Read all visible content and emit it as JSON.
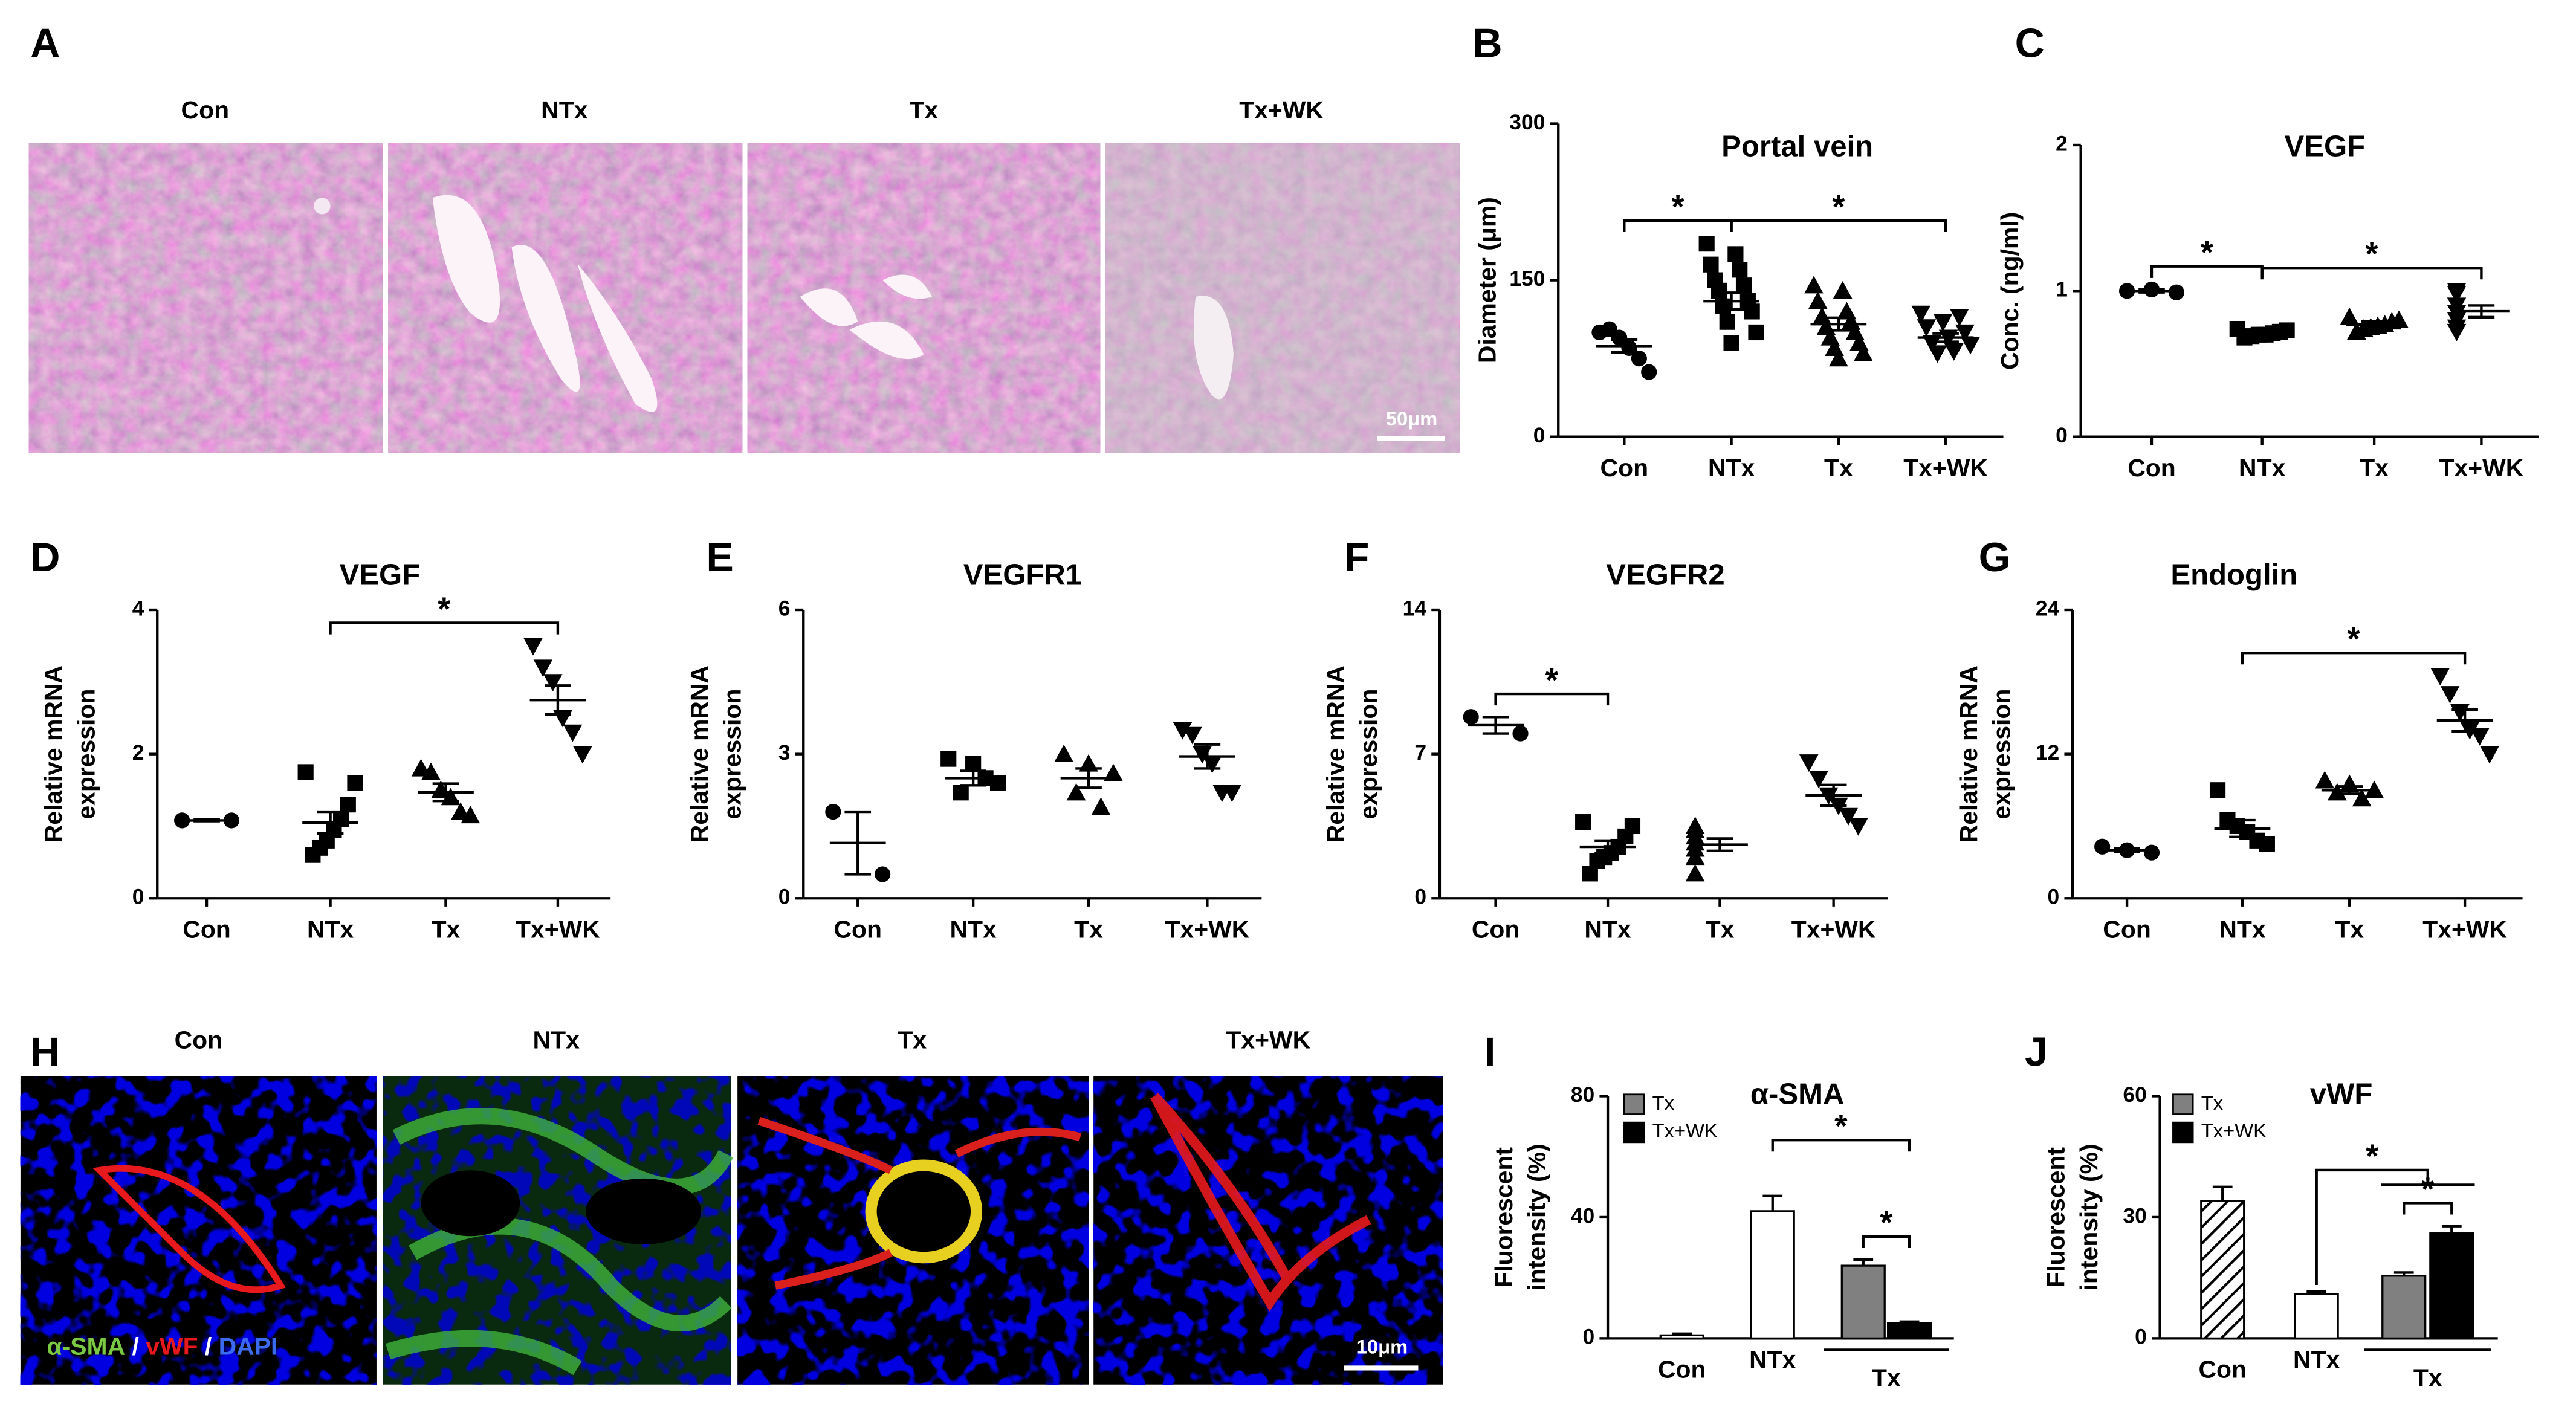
{
  "figure": {
    "A": {
      "panel": "A",
      "labels": [
        "Con",
        "NTx",
        "Tx",
        "Tx+WK"
      ],
      "scale_bar": "50μm"
    },
    "H": {
      "panel": "H",
      "labels": [
        "Con",
        "NTx",
        "Tx",
        "Tx+WK"
      ],
      "scale_bar": "10μm",
      "stain_label": [
        "α-SMA",
        " / ",
        "vWF",
        " / ",
        "DAPI"
      ],
      "stain_colors": [
        "#7ac943",
        "#ffffff",
        "#e8191d",
        "#ffffff",
        "#3b6cf0"
      ]
    }
  },
  "chart_data": [
    {
      "panel": "B",
      "type": "dotplot",
      "title": "Portal vein",
      "ylabel": "Diameter (μm)",
      "categories": [
        "Con",
        "NTx",
        "Tx",
        "Tx+WK"
      ],
      "markers": [
        "circle",
        "square",
        "triangle",
        "triangle-down"
      ],
      "points": [
        [
          100,
          103,
          95,
          85,
          75,
          62
        ],
        [
          185,
          175,
          165,
          160,
          150,
          145,
          140,
          130,
          125,
          120,
          110,
          100,
          90
        ],
        [
          145,
          140,
          130,
          120,
          115,
          110,
          105,
          100,
          95,
          90,
          85,
          80,
          75
        ],
        [
          118,
          115,
          110,
          105,
          100,
          95,
          90,
          88,
          82,
          80
        ]
      ],
      "means": [
        87,
        130,
        108,
        95
      ],
      "sems": [
        6,
        8,
        6,
        4
      ],
      "ylim": [
        0,
        300
      ],
      "yticks": [
        0,
        150,
        300
      ],
      "significance": [
        {
          "from": 0,
          "to": 1,
          "label": "*"
        },
        {
          "from": 1,
          "to": 3,
          "label": "*"
        }
      ]
    },
    {
      "panel": "C",
      "type": "dotplot",
      "title": "VEGF",
      "ylabel": "Conc. (ng/ml)",
      "categories": [
        "Con",
        "NTx",
        "Tx",
        "Tx+WK"
      ],
      "markers": [
        "circle",
        "square",
        "triangle",
        "triangle-down"
      ],
      "points": [
        [
          1.0,
          1.01,
          0.99
        ],
        [
          0.74,
          0.73,
          0.72,
          0.71,
          0.7,
          0.7,
          0.69,
          0.68
        ],
        [
          0.82,
          0.8,
          0.79,
          0.77,
          0.76,
          0.75,
          0.74,
          0.72
        ],
        [
          1.0,
          0.98,
          0.9,
          0.85,
          0.8,
          0.75,
          0.72
        ]
      ],
      "means": [
        1.0,
        0.71,
        0.77,
        0.86
      ],
      "sems": [
        0.01,
        0.01,
        0.02,
        0.04
      ],
      "ylim": [
        0,
        2
      ],
      "yticks": [
        0,
        1,
        2
      ],
      "significance": [
        {
          "from": 0,
          "to": 1,
          "label": "*"
        },
        {
          "from": 1,
          "to": 3,
          "label": "*"
        }
      ]
    },
    {
      "panel": "D",
      "type": "dotplot",
      "title": "VEGF",
      "ylabel": [
        "Relative mRNA",
        "expression"
      ],
      "categories": [
        "Con",
        "NTx",
        "Tx",
        "Tx+WK"
      ],
      "markers": [
        "circle",
        "square",
        "triangle",
        "triangle-down"
      ],
      "points": [
        [
          1.08,
          1.08
        ],
        [
          1.75,
          1.6,
          1.3,
          1.1,
          0.95,
          0.8,
          0.7,
          0.6
        ],
        [
          1.8,
          1.75,
          1.5,
          1.4,
          1.2,
          1.15
        ],
        [
          3.5,
          3.2,
          3.0,
          2.5,
          2.3,
          2.0
        ]
      ],
      "means": [
        1.08,
        1.05,
        1.47,
        2.75
      ],
      "sems": [
        0.01,
        0.15,
        0.12,
        0.2
      ],
      "ylim": [
        0,
        4
      ],
      "yticks": [
        0,
        2,
        4
      ],
      "significance": [
        {
          "from": 1,
          "to": 3,
          "label": "*"
        }
      ]
    },
    {
      "panel": "E",
      "type": "dotplot",
      "title": "VEGFR1",
      "ylabel": [
        "Relative mRNA",
        "expression"
      ],
      "categories": [
        "Con",
        "NTx",
        "Tx",
        "Tx+WK"
      ],
      "markers": [
        "circle",
        "square",
        "triangle",
        "triangle-down"
      ],
      "points": [
        [
          1.8,
          0.5
        ],
        [
          2.9,
          2.8,
          2.4,
          2.2,
          2.5
        ],
        [
          3.0,
          2.8,
          2.6,
          2.2,
          1.9
        ],
        [
          3.5,
          3.4,
          3.0,
          2.8,
          2.2,
          2.2
        ]
      ],
      "means": [
        1.15,
        2.5,
        2.5,
        2.95
      ],
      "sems": [
        0.65,
        0.15,
        0.2,
        0.25
      ],
      "ylim": [
        0,
        6
      ],
      "yticks": [
        0,
        3,
        6
      ],
      "significance": []
    },
    {
      "panel": "F",
      "type": "dotplot",
      "title": "VEGFR2",
      "ylabel": [
        "Relative mRNA",
        "expression"
      ],
      "categories": [
        "Con",
        "NTx",
        "Tx",
        "Tx+WK"
      ],
      "markers": [
        "circle",
        "square",
        "triangle",
        "triangle-down"
      ],
      "points": [
        [
          8.8,
          8.0
        ],
        [
          3.7,
          3.5,
          3.0,
          2.5,
          2.2,
          2.0,
          1.8,
          1.2
        ],
        [
          3.5,
          3.3,
          3.0,
          2.7,
          2.4,
          2.0,
          1.2
        ],
        [
          6.6,
          5.8,
          5.0,
          4.5,
          4.0,
          3.5
        ]
      ],
      "means": [
        8.4,
        2.5,
        2.6,
        5.0
      ],
      "sems": [
        0.4,
        0.3,
        0.3,
        0.5
      ],
      "ylim": [
        0,
        14
      ],
      "yticks": [
        0,
        7,
        14
      ],
      "significance": [
        {
          "from": 0,
          "to": 1,
          "label": "*"
        }
      ]
    },
    {
      "panel": "G",
      "type": "dotplot",
      "title": "Endoglin",
      "ylabel": [
        "Relative mRNA",
        "expression"
      ],
      "categories": [
        "Con",
        "NTx",
        "Tx",
        "Tx+WK"
      ],
      "markers": [
        "circle",
        "square",
        "triangle",
        "triangle-down"
      ],
      "points": [
        [
          4.3,
          4.0,
          3.8
        ],
        [
          9.0,
          6.5,
          6.0,
          5.5,
          4.8,
          4.5
        ],
        [
          9.8,
          9.5,
          9.0,
          8.8,
          8.3
        ],
        [
          18.5,
          17,
          15.5,
          14,
          13.5,
          12
        ]
      ],
      "means": [
        4.0,
        5.8,
        9.0,
        14.8
      ],
      "sems": [
        0.15,
        0.7,
        0.3,
        0.9
      ],
      "ylim": [
        0,
        24
      ],
      "yticks": [
        0,
        12,
        24
      ],
      "significance": [
        {
          "from": 1,
          "to": 3,
          "label": "*"
        }
      ]
    },
    {
      "panel": "I",
      "type": "bar",
      "title": "α-SMA",
      "ylabel": [
        "Fluorescent",
        "intensity (%)"
      ],
      "categories": [
        "Con",
        "NTx",
        null,
        null
      ],
      "group_label": "Tx",
      "values": [
        1,
        42,
        24,
        5
      ],
      "errors": [
        0.5,
        5,
        2,
        0.5
      ],
      "colors": [
        "#ffffff",
        "#ffffff",
        "#808080",
        "#000000"
      ],
      "legend": [
        {
          "name": "Tx",
          "color": "#808080"
        },
        {
          "name": "Tx+WK",
          "color": "#000000"
        }
      ],
      "ylim": [
        0,
        80
      ],
      "yticks": [
        0,
        40,
        80
      ],
      "significance": [
        {
          "from": 1,
          "to": 3,
          "label": "*"
        },
        {
          "from": 2,
          "to": 3,
          "label": "*"
        }
      ]
    },
    {
      "panel": "J",
      "type": "bar",
      "title": "vWF",
      "ylabel": [
        "Fluorescent",
        "intensity (%)"
      ],
      "categories": [
        "Con",
        "NTx",
        null,
        null
      ],
      "group_label": "Tx",
      "values": [
        34,
        11,
        15.5,
        26
      ],
      "errors": [
        3.5,
        0.6,
        0.8,
        1.8
      ],
      "colors": [
        "hatch",
        "#ffffff",
        "#808080",
        "#000000"
      ],
      "legend": [
        {
          "name": "Tx",
          "color": "#808080"
        },
        {
          "name": "Tx+WK",
          "color": "#000000"
        }
      ],
      "ylim": [
        0,
        60
      ],
      "yticks": [
        0,
        30,
        60
      ],
      "significance": [
        {
          "from": 1,
          "to": [
            2,
            3
          ],
          "label": "*"
        },
        {
          "from": 2,
          "to": 3,
          "label": "*"
        }
      ]
    }
  ]
}
